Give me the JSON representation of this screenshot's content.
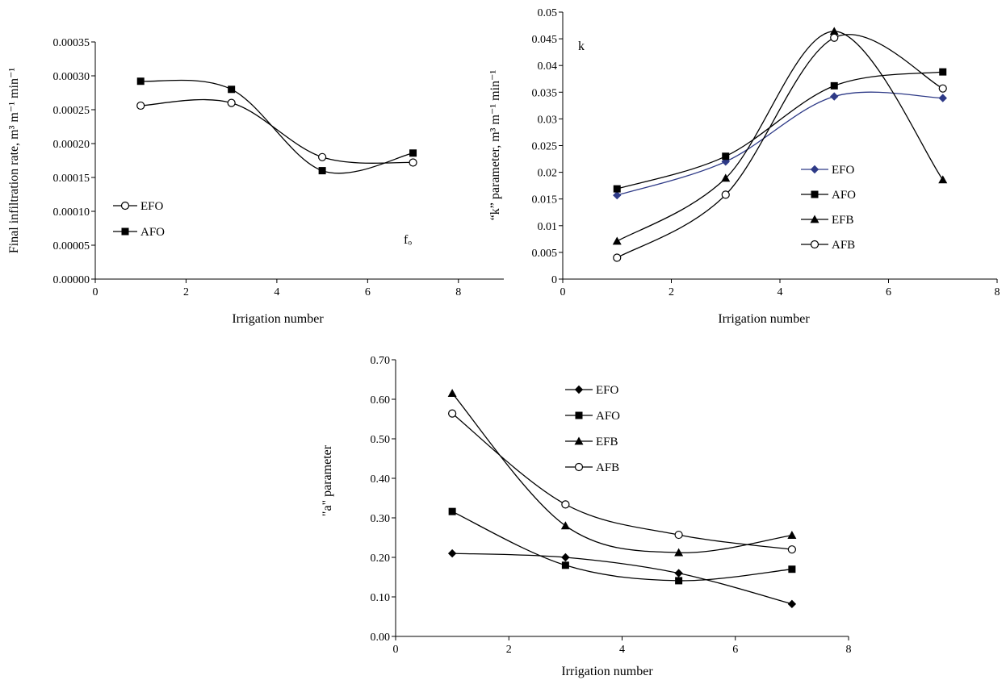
{
  "chart_data": [
    {
      "type": "line",
      "xlabel": "Irrigation number",
      "ylabel": "Final infiltration rate, m³ m⁻¹ min⁻¹",
      "xlim": [
        0,
        9
      ],
      "ylim": [
        0,
        0.00035
      ],
      "xticks": [
        {
          "value": 0,
          "label": "0"
        },
        {
          "value": 2,
          "label": "2"
        },
        {
          "value": 4,
          "label": "4"
        },
        {
          "value": 6,
          "label": "6"
        },
        {
          "value": 8,
          "label": "8"
        }
      ],
      "yticks": [
        {
          "value": 0,
          "label": "0.00000"
        },
        {
          "value": 5e-05,
          "label": "0.00005"
        },
        {
          "value": 0.0001,
          "label": "0.00010"
        },
        {
          "value": 0.00015,
          "label": "0.00015"
        },
        {
          "value": 0.0002,
          "label": "0.00020"
        },
        {
          "value": 0.00025,
          "label": "0.00025"
        },
        {
          "value": 0.0003,
          "label": "0.00030"
        },
        {
          "value": 0.00035,
          "label": "0.00035"
        }
      ],
      "annotation": "fₒ",
      "legend_placement": "left-middle",
      "series": [
        {
          "name": "EFO",
          "marker": "circle-open",
          "color": "#000000",
          "x": [
            1,
            3,
            5,
            7
          ],
          "y": [
            0.000256,
            0.00026,
            0.00018,
            0.000172
          ]
        },
        {
          "name": "AFO",
          "marker": "square",
          "color": "#000000",
          "x": [
            1,
            3,
            5,
            7
          ],
          "y": [
            0.000292,
            0.00028,
            0.00016,
            0.000186
          ]
        }
      ]
    },
    {
      "type": "line",
      "xlabel": "Irrigation number",
      "ylabel": "“k” parameter, m³ m⁻¹ min⁻¹",
      "xlim": [
        0,
        8
      ],
      "ylim": [
        0,
        0.05
      ],
      "xticks": [
        {
          "value": 0,
          "label": "0"
        },
        {
          "value": 2,
          "label": "2"
        },
        {
          "value": 4,
          "label": "4"
        },
        {
          "value": 6,
          "label": "6"
        },
        {
          "value": 8,
          "label": "8"
        }
      ],
      "yticks": [
        {
          "value": 0,
          "label": "0"
        },
        {
          "value": 0.005,
          "label": "0.005"
        },
        {
          "value": 0.01,
          "label": "0.01"
        },
        {
          "value": 0.015,
          "label": "0.015"
        },
        {
          "value": 0.02,
          "label": "0.02"
        },
        {
          "value": 0.025,
          "label": "0.025"
        },
        {
          "value": 0.03,
          "label": "0.03"
        },
        {
          "value": 0.035,
          "label": "0.035"
        },
        {
          "value": 0.04,
          "label": "0.04"
        },
        {
          "value": 0.045,
          "label": "0.045"
        },
        {
          "value": 0.05,
          "label": "0.05"
        }
      ],
      "annotation": "k",
      "legend_placement": "right-middle",
      "series": [
        {
          "name": "EFO",
          "marker": "diamond",
          "color": "#2e3a87",
          "x": [
            1,
            3,
            5,
            7
          ],
          "y": [
            0.0157,
            0.022,
            0.0342,
            0.0339
          ]
        },
        {
          "name": "AFO",
          "marker": "square",
          "color": "#000000",
          "x": [
            1,
            3,
            5,
            7
          ],
          "y": [
            0.0169,
            0.023,
            0.0362,
            0.0388
          ]
        },
        {
          "name": "EFB",
          "marker": "triangle",
          "color": "#000000",
          "x": [
            1,
            3,
            5,
            7
          ],
          "y": [
            0.0071,
            0.0189,
            0.0464,
            0.0186
          ]
        },
        {
          "name": "AFB",
          "marker": "circle-open",
          "color": "#000000",
          "x": [
            1,
            3,
            5,
            7
          ],
          "y": [
            0.004,
            0.0158,
            0.0452,
            0.0357
          ]
        }
      ]
    },
    {
      "type": "line",
      "xlabel": "Irrigation number",
      "ylabel": "\"a\" parameter",
      "xlim": [
        0,
        8
      ],
      "ylim": [
        0,
        0.7
      ],
      "xticks": [
        {
          "value": 0,
          "label": "0"
        },
        {
          "value": 2,
          "label": "2"
        },
        {
          "value": 4,
          "label": "4"
        },
        {
          "value": 6,
          "label": "6"
        },
        {
          "value": 8,
          "label": "8"
        }
      ],
      "yticks": [
        {
          "value": 0,
          "label": "0.00"
        },
        {
          "value": 0.1,
          "label": "0.10"
        },
        {
          "value": 0.2,
          "label": "0.20"
        },
        {
          "value": 0.3,
          "label": "0.30"
        },
        {
          "value": 0.4,
          "label": "0.40"
        },
        {
          "value": 0.5,
          "label": "0.50"
        },
        {
          "value": 0.6,
          "label": "0.60"
        },
        {
          "value": 0.7,
          "label": "0.70"
        }
      ],
      "annotation": "",
      "legend_placement": "top-right",
      "series": [
        {
          "name": "EFO",
          "marker": "diamond",
          "color": "#000000",
          "x": [
            1,
            3,
            5,
            7
          ],
          "y": [
            0.21,
            0.2,
            0.16,
            0.082
          ]
        },
        {
          "name": "AFO",
          "marker": "square",
          "color": "#000000",
          "x": [
            1,
            3,
            5,
            7
          ],
          "y": [
            0.316,
            0.18,
            0.141,
            0.17
          ]
        },
        {
          "name": "EFB",
          "marker": "triangle",
          "color": "#000000",
          "x": [
            1,
            3,
            5,
            7
          ],
          "y": [
            0.615,
            0.28,
            0.212,
            0.256
          ]
        },
        {
          "name": "AFB",
          "marker": "circle-open",
          "color": "#000000",
          "x": [
            1,
            3,
            5,
            7
          ],
          "y": [
            0.564,
            0.334,
            0.257,
            0.22
          ]
        }
      ]
    }
  ]
}
